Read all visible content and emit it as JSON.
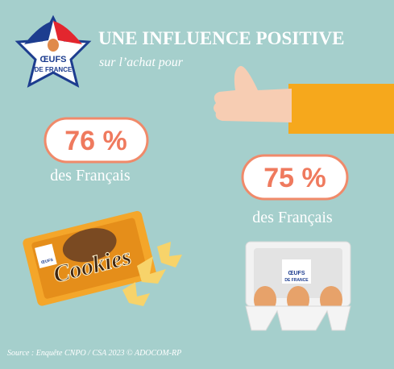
{
  "header": {
    "title": "UNE INFLUENCE POSITIVE",
    "subtitle": "sur l’achat pour"
  },
  "logo": {
    "line1": "ŒUFS",
    "line2": "DE FRANCE"
  },
  "stats": [
    {
      "value": "76 %",
      "label": "des Français"
    },
    {
      "value": "75 %",
      "label": "des Français"
    }
  ],
  "product": "Cookies",
  "source": "Source : Enquête CNPO / CSA 2023 © ADOCOM-RP"
}
